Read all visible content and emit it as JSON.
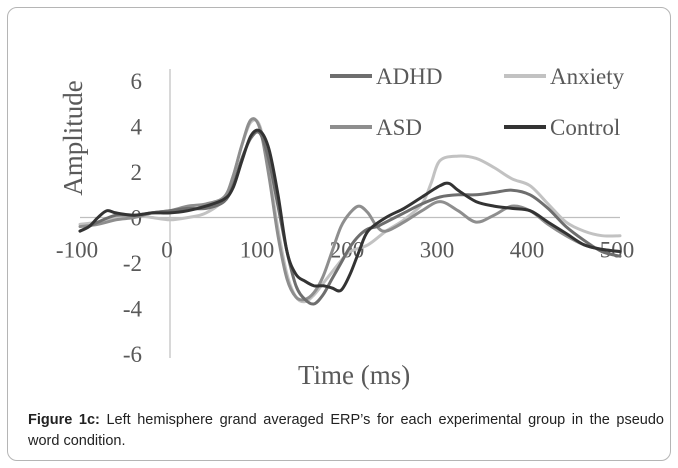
{
  "caption": {
    "label": "Figure 1c:",
    "text": " Left hemisphere grand averaged ERP’s for each experimental group in the pseudo word condition."
  },
  "chart_data": {
    "type": "line",
    "xlabel": "Time (ms)",
    "ylabel": "Amplitude",
    "xlim": [
      -100,
      500
    ],
    "ylim": [
      -6,
      6
    ],
    "x_ticks": [
      -100,
      0,
      100,
      200,
      300,
      400,
      500
    ],
    "y_ticks": [
      -6,
      -4,
      -2,
      0,
      2,
      4,
      6
    ],
    "grid": false,
    "legend_position": "top-right",
    "series": [
      {
        "name": "ADHD",
        "color": "#6e6e6e",
        "x": [
          -100,
          -80,
          -60,
          -40,
          -20,
          0,
          20,
          40,
          60,
          70,
          80,
          90,
          100,
          110,
          120,
          130,
          140,
          150,
          160,
          170,
          180,
          190,
          200,
          210,
          220,
          230,
          240,
          260,
          280,
          300,
          320,
          340,
          360,
          380,
          400,
          420,
          440,
          460,
          480,
          500
        ],
        "y": [
          -0.6,
          -0.2,
          0.1,
          0.1,
          0.2,
          0.3,
          0.4,
          0.4,
          0.7,
          1.4,
          2.6,
          3.5,
          3.7,
          2.5,
          0.5,
          -1.5,
          -3.0,
          -3.6,
          -3.8,
          -3.4,
          -2.7,
          -2.0,
          -1.3,
          -0.8,
          -0.5,
          -0.4,
          -0.2,
          0.2,
          0.6,
          0.9,
          1.0,
          1.0,
          1.1,
          1.2,
          1.0,
          0.4,
          -0.4,
          -1.0,
          -1.5,
          -1.7
        ]
      },
      {
        "name": "Anxiety",
        "color": "#c2c2c2",
        "x": [
          -100,
          -80,
          -60,
          -40,
          -20,
          0,
          20,
          40,
          60,
          70,
          80,
          90,
          100,
          110,
          120,
          130,
          140,
          150,
          160,
          170,
          180,
          190,
          200,
          220,
          240,
          260,
          280,
          290,
          300,
          320,
          340,
          360,
          380,
          400,
          420,
          440,
          460,
          480,
          500
        ],
        "y": [
          -0.3,
          -0.2,
          0.0,
          0.1,
          0.0,
          -0.1,
          0.0,
          0.2,
          0.8,
          1.8,
          3.2,
          4.2,
          4.0,
          2.0,
          -0.5,
          -2.5,
          -3.5,
          -3.7,
          -3.4,
          -2.9,
          -2.4,
          -1.9,
          -1.5,
          -1.2,
          -0.6,
          -0.1,
          0.6,
          1.5,
          2.5,
          2.7,
          2.6,
          2.2,
          1.7,
          1.4,
          0.6,
          -0.2,
          -0.6,
          -0.8,
          -0.8
        ]
      },
      {
        "name": "ASD",
        "color": "#8e8e8e",
        "x": [
          -100,
          -80,
          -60,
          -40,
          -20,
          0,
          20,
          40,
          60,
          70,
          80,
          90,
          100,
          110,
          120,
          130,
          140,
          150,
          160,
          170,
          180,
          190,
          200,
          210,
          220,
          230,
          240,
          260,
          280,
          300,
          320,
          340,
          360,
          380,
          400,
          420,
          440,
          460,
          480,
          500
        ],
        "y": [
          -0.4,
          -0.3,
          -0.1,
          0.0,
          0.2,
          0.3,
          0.5,
          0.6,
          0.9,
          1.8,
          3.2,
          4.3,
          3.9,
          1.8,
          -0.8,
          -2.7,
          -3.5,
          -3.6,
          -3.3,
          -2.6,
          -1.5,
          -0.4,
          0.2,
          0.5,
          0.2,
          -0.4,
          -0.6,
          -0.2,
          0.3,
          0.7,
          0.3,
          -0.2,
          0.1,
          0.5,
          0.3,
          -0.3,
          -0.8,
          -1.2,
          -1.4,
          -1.5
        ]
      },
      {
        "name": "Control",
        "color": "#333333",
        "x": [
          -100,
          -90,
          -80,
          -70,
          -60,
          -40,
          -20,
          0,
          20,
          40,
          60,
          70,
          80,
          90,
          100,
          110,
          120,
          130,
          140,
          150,
          160,
          170,
          180,
          190,
          200,
          210,
          220,
          240,
          260,
          280,
          300,
          310,
          320,
          340,
          360,
          380,
          400,
          420,
          440,
          460,
          480,
          500
        ],
        "y": [
          -0.6,
          -0.4,
          0.0,
          0.3,
          0.2,
          0.1,
          0.2,
          0.2,
          0.3,
          0.5,
          0.8,
          1.3,
          2.5,
          3.6,
          3.8,
          3.0,
          1.0,
          -1.5,
          -2.5,
          -2.8,
          -3.0,
          -3.0,
          -3.1,
          -3.2,
          -2.5,
          -1.5,
          -0.6,
          0.0,
          0.4,
          0.9,
          1.4,
          1.5,
          1.2,
          0.7,
          0.5,
          0.4,
          0.3,
          -0.2,
          -0.7,
          -1.2,
          -1.4,
          -1.5
        ]
      }
    ]
  }
}
